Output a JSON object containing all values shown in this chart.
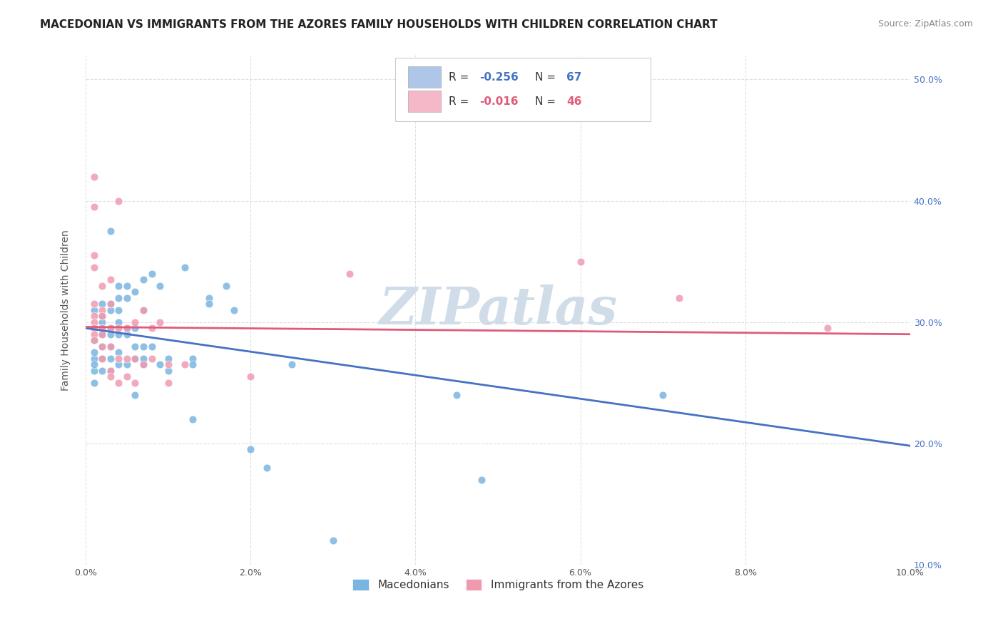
{
  "title": "MACEDONIAN VS IMMIGRANTS FROM THE AZORES FAMILY HOUSEHOLDS WITH CHILDREN CORRELATION CHART",
  "source": "Source: ZipAtlas.com",
  "ylabel_label": "Family Households with Children",
  "legend_bottom": [
    "Macedonians",
    "Immigrants from the Azores"
  ],
  "watermark": "ZIPatlas",
  "blue_scatter": [
    [
      0.001,
      0.27
    ],
    [
      0.001,
      0.285
    ],
    [
      0.001,
      0.295
    ],
    [
      0.001,
      0.31
    ],
    [
      0.001,
      0.26
    ],
    [
      0.001,
      0.275
    ],
    [
      0.001,
      0.265
    ],
    [
      0.001,
      0.25
    ],
    [
      0.002,
      0.3
    ],
    [
      0.002,
      0.29
    ],
    [
      0.002,
      0.305
    ],
    [
      0.002,
      0.28
    ],
    [
      0.002,
      0.27
    ],
    [
      0.002,
      0.295
    ],
    [
      0.002,
      0.315
    ],
    [
      0.002,
      0.26
    ],
    [
      0.003,
      0.31
    ],
    [
      0.003,
      0.295
    ],
    [
      0.003,
      0.28
    ],
    [
      0.003,
      0.27
    ],
    [
      0.003,
      0.26
    ],
    [
      0.003,
      0.29
    ],
    [
      0.003,
      0.375
    ],
    [
      0.003,
      0.315
    ],
    [
      0.004,
      0.32
    ],
    [
      0.004,
      0.29
    ],
    [
      0.004,
      0.275
    ],
    [
      0.004,
      0.265
    ],
    [
      0.004,
      0.31
    ],
    [
      0.004,
      0.3
    ],
    [
      0.004,
      0.33
    ],
    [
      0.005,
      0.29
    ],
    [
      0.005,
      0.32
    ],
    [
      0.005,
      0.33
    ],
    [
      0.005,
      0.295
    ],
    [
      0.005,
      0.265
    ],
    [
      0.006,
      0.325
    ],
    [
      0.006,
      0.295
    ],
    [
      0.006,
      0.27
    ],
    [
      0.006,
      0.24
    ],
    [
      0.006,
      0.28
    ],
    [
      0.007,
      0.335
    ],
    [
      0.007,
      0.31
    ],
    [
      0.007,
      0.28
    ],
    [
      0.007,
      0.265
    ],
    [
      0.007,
      0.27
    ],
    [
      0.008,
      0.34
    ],
    [
      0.008,
      0.28
    ],
    [
      0.009,
      0.33
    ],
    [
      0.009,
      0.265
    ],
    [
      0.01,
      0.27
    ],
    [
      0.01,
      0.26
    ],
    [
      0.012,
      0.345
    ],
    [
      0.013,
      0.27
    ],
    [
      0.013,
      0.265
    ],
    [
      0.013,
      0.22
    ],
    [
      0.015,
      0.32
    ],
    [
      0.015,
      0.315
    ],
    [
      0.017,
      0.33
    ],
    [
      0.018,
      0.31
    ],
    [
      0.02,
      0.195
    ],
    [
      0.022,
      0.18
    ],
    [
      0.025,
      0.265
    ],
    [
      0.03,
      0.12
    ],
    [
      0.045,
      0.24
    ],
    [
      0.048,
      0.17
    ],
    [
      0.07,
      0.24
    ]
  ],
  "pink_scatter": [
    [
      0.001,
      0.42
    ],
    [
      0.001,
      0.395
    ],
    [
      0.001,
      0.355
    ],
    [
      0.001,
      0.345
    ],
    [
      0.001,
      0.315
    ],
    [
      0.001,
      0.305
    ],
    [
      0.001,
      0.3
    ],
    [
      0.001,
      0.295
    ],
    [
      0.001,
      0.29
    ],
    [
      0.001,
      0.285
    ],
    [
      0.002,
      0.33
    ],
    [
      0.002,
      0.31
    ],
    [
      0.002,
      0.305
    ],
    [
      0.002,
      0.295
    ],
    [
      0.002,
      0.29
    ],
    [
      0.002,
      0.28
    ],
    [
      0.002,
      0.27
    ],
    [
      0.003,
      0.335
    ],
    [
      0.003,
      0.315
    ],
    [
      0.003,
      0.295
    ],
    [
      0.003,
      0.28
    ],
    [
      0.003,
      0.26
    ],
    [
      0.003,
      0.255
    ],
    [
      0.004,
      0.4
    ],
    [
      0.004,
      0.295
    ],
    [
      0.004,
      0.27
    ],
    [
      0.004,
      0.25
    ],
    [
      0.005,
      0.295
    ],
    [
      0.005,
      0.27
    ],
    [
      0.005,
      0.255
    ],
    [
      0.006,
      0.3
    ],
    [
      0.006,
      0.27
    ],
    [
      0.006,
      0.25
    ],
    [
      0.007,
      0.31
    ],
    [
      0.007,
      0.265
    ],
    [
      0.008,
      0.295
    ],
    [
      0.008,
      0.27
    ],
    [
      0.009,
      0.3
    ],
    [
      0.01,
      0.265
    ],
    [
      0.01,
      0.25
    ],
    [
      0.012,
      0.265
    ],
    [
      0.02,
      0.255
    ],
    [
      0.032,
      0.34
    ],
    [
      0.06,
      0.35
    ],
    [
      0.072,
      0.32
    ],
    [
      0.09,
      0.295
    ]
  ],
  "blue_line_x": [
    0.0,
    0.1
  ],
  "blue_line_y": [
    0.295,
    0.198
  ],
  "pink_line_x": [
    0.0,
    0.1
  ],
  "pink_line_y": [
    0.296,
    0.29
  ],
  "xlim": [
    0.0,
    0.1
  ],
  "ylim": [
    0.1,
    0.52
  ],
  "title_fontsize": 11,
  "source_fontsize": 9,
  "axis_label_fontsize": 10,
  "tick_fontsize": 9,
  "scatter_size": 60,
  "blue_scatter_color": "#7ab4e0",
  "pink_scatter_color": "#f09ab0",
  "blue_line_color": "#4472c4",
  "pink_line_color": "#e05a7a",
  "grid_color": "#d9d9d9",
  "watermark_color": "#d0dce8",
  "background_color": "#ffffff",
  "legend_blue_color": "#aec6e8",
  "legend_pink_color": "#f4b8c8",
  "r_blue": "-0.256",
  "n_blue": "67",
  "r_pink": "-0.016",
  "n_pink": "46"
}
